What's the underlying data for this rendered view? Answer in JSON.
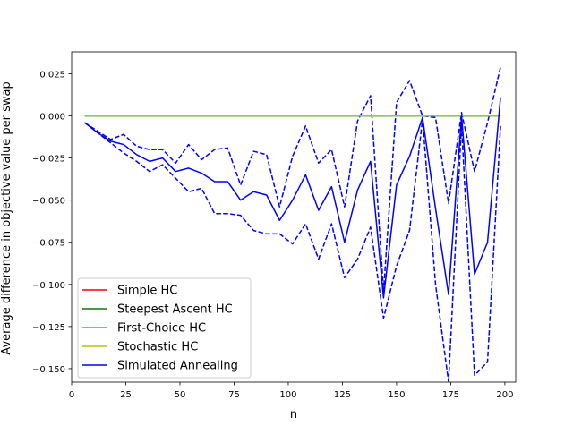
{
  "chart_data": {
    "type": "line",
    "title": "",
    "xlabel": "n",
    "ylabel": "Average difference in objective value per swap",
    "xlim": [
      0,
      205
    ],
    "ylim": [
      -0.158,
      0.038
    ],
    "xticks": [
      0,
      25,
      50,
      75,
      100,
      125,
      150,
      175,
      200
    ],
    "xtick_labels": [
      "0",
      "25",
      "50",
      "75",
      "100",
      "125",
      "150",
      "175",
      "200"
    ],
    "yticks": [
      0.025,
      0.0,
      -0.025,
      -0.05,
      -0.075,
      -0.1,
      -0.125,
      -0.15
    ],
    "ytick_labels": [
      "0.025",
      "0.000",
      "−0.025",
      "−0.050",
      "−0.075",
      "−0.100",
      "−0.125",
      "−0.150"
    ],
    "grid": false,
    "legend_position": "lower-left",
    "x": [
      6,
      12,
      18,
      24,
      30,
      36,
      42,
      48,
      54,
      60,
      66,
      72,
      78,
      84,
      90,
      96,
      102,
      108,
      114,
      120,
      126,
      132,
      138,
      144,
      150,
      156,
      162,
      168,
      174,
      180,
      186,
      192,
      198
    ],
    "series": [
      {
        "name": "Simple HC",
        "color": "#ff0000",
        "style": "solid",
        "values": [
          0,
          0,
          0,
          0,
          0,
          0,
          0,
          0,
          0,
          0,
          0,
          0,
          0,
          0,
          0,
          0,
          0,
          0,
          0,
          0,
          0,
          0,
          0,
          0,
          0,
          0,
          0,
          0,
          0,
          0,
          0,
          0,
          0
        ]
      },
      {
        "name": "Steepest Ascent HC",
        "color": "#008000",
        "style": "solid",
        "values": [
          0,
          0,
          0,
          0,
          0,
          0,
          0,
          0,
          0,
          0,
          0,
          0,
          0,
          0,
          0,
          0,
          0,
          0,
          0,
          0,
          0,
          0,
          0,
          0,
          0,
          0,
          0,
          0,
          0,
          0,
          0,
          0,
          0
        ]
      },
      {
        "name": "First-Choice HC",
        "color": "#00bfbf",
        "style": "solid",
        "values": [
          0,
          0,
          0,
          0,
          0,
          0,
          0,
          0,
          0,
          0,
          0,
          0,
          0,
          0,
          0,
          0,
          0,
          0,
          0,
          0,
          0,
          0,
          0,
          0,
          0,
          0,
          0,
          0,
          0,
          0,
          0,
          0,
          0
        ]
      },
      {
        "name": "Stochastic HC",
        "color": "#bfbf00",
        "style": "solid",
        "values": [
          0,
          0,
          0,
          0,
          0,
          0,
          0,
          0,
          0,
          0,
          0,
          0,
          0,
          0,
          0,
          0,
          0,
          0,
          0,
          0,
          0,
          0,
          0,
          0,
          0,
          0,
          0,
          0,
          0,
          0,
          0,
          0,
          0
        ]
      },
      {
        "name": "Simulated Annealing",
        "color": "#0000ff",
        "style": "solid",
        "values": [
          -0.004,
          -0.01,
          -0.015,
          -0.017,
          -0.023,
          -0.027,
          -0.025,
          -0.033,
          -0.031,
          -0.034,
          -0.039,
          -0.039,
          -0.05,
          -0.045,
          -0.047,
          -0.062,
          -0.05,
          -0.035,
          -0.056,
          -0.042,
          -0.075,
          -0.044,
          -0.027,
          -0.108,
          -0.041,
          -0.024,
          -0.001,
          -0.055,
          -0.106,
          0.0,
          -0.094,
          -0.075,
          0.011
        ]
      }
    ],
    "bands": [
      {
        "color": "#0000ff",
        "style": "dashed",
        "values": [
          -0.004,
          -0.009,
          -0.014,
          -0.011,
          -0.018,
          -0.02,
          -0.02,
          -0.028,
          -0.017,
          -0.026,
          -0.02,
          -0.019,
          -0.041,
          -0.021,
          -0.023,
          -0.054,
          -0.024,
          -0.006,
          -0.028,
          -0.02,
          -0.054,
          -0.003,
          0.012,
          -0.104,
          0.008,
          0.021,
          0.0,
          -0.001,
          -0.052,
          0.002,
          -0.033,
          -0.004,
          0.029
        ]
      },
      {
        "color": "#0000ff",
        "style": "dashed",
        "values": [
          -0.004,
          -0.01,
          -0.016,
          -0.022,
          -0.027,
          -0.033,
          -0.029,
          -0.037,
          -0.045,
          -0.043,
          -0.058,
          -0.058,
          -0.059,
          -0.068,
          -0.07,
          -0.07,
          -0.076,
          -0.064,
          -0.085,
          -0.064,
          -0.096,
          -0.085,
          -0.066,
          -0.12,
          -0.089,
          -0.068,
          -0.002,
          -0.1,
          -0.158,
          -0.005,
          -0.154,
          -0.146,
          -0.006
        ]
      }
    ]
  }
}
